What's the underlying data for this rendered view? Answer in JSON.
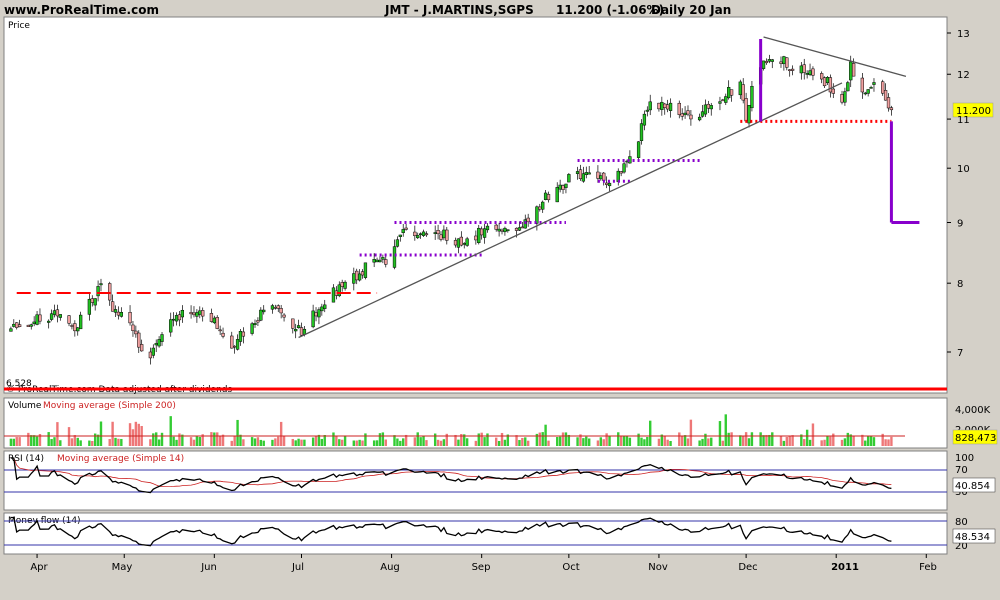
{
  "header": {
    "site": "www.ProRealTime.com",
    "instrument": "JMT - J.MARTINS,SGPS",
    "price_change": "11.200 (-1.06%)",
    "period": "Daily  20 Jan"
  },
  "colors": {
    "background": "#d4d0c8",
    "panel": "#ffffff",
    "up_candle": "#22c022",
    "down_candle": "#f0a0a0",
    "up_volume": "#33cc33",
    "down_volume": "#ee7777",
    "trendline": "#555555",
    "red_dash": "#ff0000",
    "purple": "#8800cc",
    "red_base": "#ff0000",
    "band": "#3333aa",
    "value_box": "#ffff00"
  },
  "price_panel": {
    "label": "Price",
    "last_value_label": "11.200",
    "low_label": "6.528",
    "source_note": "© ProRealTime.com  Data adjusted after dividends"
  },
  "volume_panel": {
    "label": "Volume",
    "indicator_label": "Moving average (Simple 200)",
    "ticks": [
      "4,000K",
      "2,000K"
    ],
    "value_label": "828,473"
  },
  "rsi_panel": {
    "label": "RSI (14)",
    "indicator_label": "Moving average (Simple 14)",
    "ticks": [
      "100",
      "70",
      "30"
    ],
    "value_label": "40.854"
  },
  "mfi_panel": {
    "label": "Money flow (14)",
    "ticks": [
      "80",
      "20"
    ],
    "value_label": "48.534"
  },
  "chart_data": {
    "type": "candlestick",
    "x_tick_labels": [
      "Apr",
      "May",
      "Jun",
      "Jul",
      "Aug",
      "Sep",
      "Oct",
      "Nov",
      "Dec",
      "2011",
      "Jan",
      "Feb"
    ],
    "price_axis": {
      "ticks": [
        7,
        8,
        9,
        10,
        11,
        12,
        13
      ],
      "scale": "log",
      "range": [
        6.4,
        13.2
      ]
    },
    "close_anchors": [
      {
        "date": "2010-03-23",
        "close": 7.35
      },
      {
        "date": "2010-03-31",
        "close": 7.45
      },
      {
        "date": "2010-04-08",
        "close": 7.55
      },
      {
        "date": "2010-04-14",
        "close": 7.3
      },
      {
        "date": "2010-04-19",
        "close": 7.7
      },
      {
        "date": "2010-04-23",
        "close": 7.95
      },
      {
        "date": "2010-04-27",
        "close": 7.6
      },
      {
        "date": "2010-05-03",
        "close": 7.4
      },
      {
        "date": "2010-05-06",
        "close": 7.1
      },
      {
        "date": "2010-05-10",
        "close": 6.95
      },
      {
        "date": "2010-05-14",
        "close": 7.3
      },
      {
        "date": "2010-05-20",
        "close": 7.5
      },
      {
        "date": "2010-05-26",
        "close": 7.6
      },
      {
        "date": "2010-06-01",
        "close": 7.4
      },
      {
        "date": "2010-06-07",
        "close": 7.1
      },
      {
        "date": "2010-06-14",
        "close": 7.4
      },
      {
        "date": "2010-06-21",
        "close": 7.7
      },
      {
        "date": "2010-06-25",
        "close": 7.45
      },
      {
        "date": "2010-07-01",
        "close": 7.3
      },
      {
        "date": "2010-07-08",
        "close": 7.7
      },
      {
        "date": "2010-07-15",
        "close": 7.95
      },
      {
        "date": "2010-07-21",
        "close": 8.15
      },
      {
        "date": "2010-07-27",
        "close": 8.4
      },
      {
        "date": "2010-07-30",
        "close": 8.3
      },
      {
        "date": "2010-08-04",
        "close": 8.8
      },
      {
        "date": "2010-08-10",
        "close": 8.85
      },
      {
        "date": "2010-08-18",
        "close": 8.8
      },
      {
        "date": "2010-08-26",
        "close": 8.6
      },
      {
        "date": "2010-09-01",
        "close": 8.85
      },
      {
        "date": "2010-09-09",
        "close": 8.85
      },
      {
        "date": "2010-09-17",
        "close": 9.05
      },
      {
        "date": "2010-09-24",
        "close": 9.5
      },
      {
        "date": "2010-09-28",
        "close": 9.65
      },
      {
        "date": "2010-10-04",
        "close": 9.9
      },
      {
        "date": "2010-10-11",
        "close": 9.75
      },
      {
        "date": "2010-10-18",
        "close": 9.85
      },
      {
        "date": "2010-10-25",
        "close": 10.6
      },
      {
        "date": "2010-10-28",
        "close": 11.3
      },
      {
        "date": "2010-11-04",
        "close": 11.3
      },
      {
        "date": "2010-11-12",
        "close": 11.0
      },
      {
        "date": "2010-11-19",
        "close": 11.3
      },
      {
        "date": "2010-11-24",
        "close": 11.6
      },
      {
        "date": "2010-11-29",
        "close": 11.7
      },
      {
        "date": "2010-12-01",
        "close": 11.0
      },
      {
        "date": "2010-12-03",
        "close": 11.6
      },
      {
        "date": "2010-12-07",
        "close": 12.3
      },
      {
        "date": "2010-12-10",
        "close": 12.4
      },
      {
        "date": "2010-12-17",
        "close": 12.2
      },
      {
        "date": "2010-12-23",
        "close": 12.1
      },
      {
        "date": "2010-12-29",
        "close": 11.8
      },
      {
        "date": "2011-01-03",
        "close": 11.4
      },
      {
        "date": "2011-01-06",
        "close": 12.2
      },
      {
        "date": "2011-01-11",
        "close": 11.6
      },
      {
        "date": "2011-01-14",
        "close": 11.7
      },
      {
        "date": "2011-01-18",
        "close": 11.5
      },
      {
        "date": "2011-01-20",
        "close": 11.2
      }
    ],
    "annotations": {
      "resistance_red_dashed": {
        "from": "2010-03-25",
        "to": "2010-07-27",
        "price": 7.85
      },
      "purple_dotted_levels": [
        {
          "from": "2010-07-21",
          "to": "2010-09-01",
          "price": 8.45
        },
        {
          "from": "2010-08-02",
          "to": "2010-09-30",
          "price": 9.0
        },
        {
          "from": "2010-10-11",
          "to": "2010-10-22",
          "price": 9.75
        },
        {
          "from": "2010-10-04",
          "to": "2010-11-16",
          "price": 10.15
        }
      ],
      "support_red_dotted": {
        "from": "2010-11-29",
        "to": "2011-01-20",
        "price": 10.95
      },
      "rising_trendline": {
        "from": {
          "date": "2010-06-30",
          "price": 7.2
        },
        "to": {
          "date": "2011-01-03",
          "price": 11.8
        }
      },
      "falling_trendline": {
        "from": {
          "date": "2010-12-07",
          "price": 12.9
        },
        "to": {
          "date": "2011-01-25",
          "price": 11.95
        }
      },
      "purple_markers": [
        {
          "date": "2010-12-06",
          "from": 12.85,
          "to": 10.95
        },
        {
          "date": "2011-01-20",
          "from": 10.95,
          "to": 9.0
        }
      ]
    },
    "indicators": {
      "volume_moving_average": "Simple 200",
      "rsi": {
        "period": 14,
        "levels": [
          70,
          30
        ],
        "moving_average": "Simple 14",
        "last": 40.854
      },
      "money_flow": {
        "period": 14,
        "levels": [
          80,
          20
        ],
        "last": 48.534
      },
      "last_volume": 828473
    }
  }
}
